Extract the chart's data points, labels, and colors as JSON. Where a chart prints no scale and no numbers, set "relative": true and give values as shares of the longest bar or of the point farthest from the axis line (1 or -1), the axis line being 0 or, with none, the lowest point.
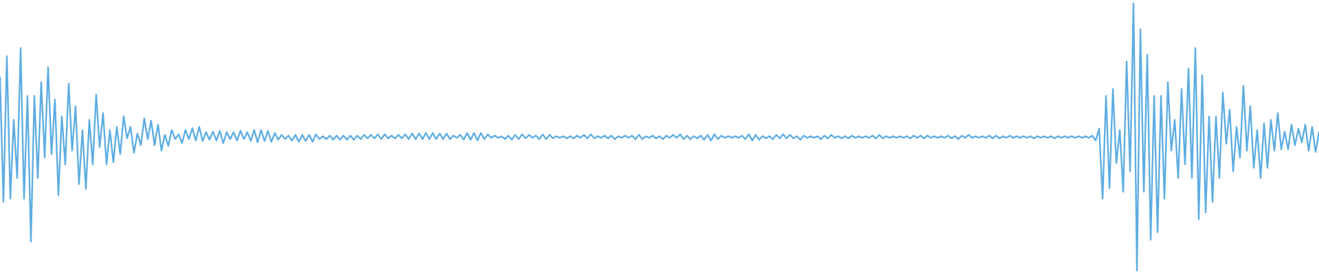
{
  "chart_data": {
    "type": "line",
    "relative": true,
    "color": "#5dade2",
    "categories": [
      null,
      null,
      null,
      null,
      null,
      null,
      null,
      null,
      null,
      null,
      null,
      null,
      null,
      null,
      null,
      null,
      null,
      null,
      null,
      null,
      null,
      null,
      null,
      null,
      null,
      null,
      null,
      null,
      null,
      null,
      null,
      null,
      null,
      null,
      null,
      null,
      null,
      null,
      null,
      null,
      null,
      null,
      null,
      null,
      null,
      null,
      null,
      null,
      null,
      null,
      null,
      null,
      null,
      null,
      null,
      null,
      null,
      null,
      null,
      null,
      null,
      null,
      null,
      null,
      null,
      null,
      null,
      null,
      null,
      null,
      null,
      null,
      null,
      null,
      null,
      null,
      null,
      null,
      null,
      null,
      null,
      null,
      null,
      null,
      null,
      null,
      null,
      null,
      null,
      null,
      null,
      null,
      null,
      null,
      null,
      null,
      null,
      null,
      null,
      null,
      null,
      null,
      null,
      null,
      null,
      null,
      null,
      null,
      null,
      null,
      null,
      null,
      null,
      null,
      null,
      null,
      null,
      null,
      null,
      null,
      null,
      null,
      null,
      null,
      null,
      null,
      null,
      null,
      null,
      null,
      null,
      null,
      null,
      null,
      null,
      null,
      null,
      null,
      null,
      null,
      null,
      null,
      null,
      null,
      null,
      null,
      null,
      null,
      null,
      null,
      null,
      null,
      null,
      null,
      null,
      null,
      null,
      null,
      null,
      null,
      null,
      null,
      null,
      null,
      null,
      null,
      null,
      null,
      null,
      null,
      null,
      null,
      null,
      null,
      null,
      null,
      null,
      null,
      null,
      null,
      null,
      null,
      null,
      null,
      null,
      null,
      null,
      null,
      null,
      null,
      null,
      null,
      null,
      null,
      null,
      null,
      null,
      null,
      null,
      null,
      null,
      null,
      null,
      null,
      null,
      null,
      null,
      null,
      null,
      null,
      null,
      null,
      null,
      null,
      null,
      null,
      null,
      null,
      null,
      null,
      null,
      null,
      null,
      null,
      null,
      null,
      null,
      null,
      null,
      null,
      null,
      null,
      null,
      null,
      null,
      null,
      null,
      null,
      null,
      null,
      null,
      null,
      null,
      null,
      null,
      null,
      null,
      null,
      null,
      null,
      null,
      null,
      null,
      null,
      null,
      null,
      null,
      null,
      null,
      null,
      null,
      null,
      null,
      null,
      null,
      null,
      null,
      null,
      null,
      null,
      null,
      null,
      null,
      null,
      null,
      null,
      null,
      null,
      null,
      null,
      null,
      null,
      null,
      null,
      null,
      null,
      null,
      null,
      null,
      null,
      null,
      null,
      null,
      null,
      null,
      null,
      null,
      null,
      null,
      null,
      null,
      null,
      null,
      null,
      null,
      null,
      null,
      null,
      null,
      null,
      null,
      null,
      null,
      null,
      null,
      null,
      null,
      null,
      null,
      null,
      null,
      null,
      null,
      null,
      null,
      null,
      null,
      null,
      null,
      null,
      null,
      null,
      null,
      null,
      null,
      null,
      null,
      null,
      null,
      null,
      null,
      null,
      null,
      null,
      null,
      null,
      null,
      null,
      null,
      null,
      null,
      null,
      null,
      null,
      null,
      null,
      null,
      null,
      null,
      null,
      null,
      null,
      null,
      null,
      null,
      null,
      null,
      null,
      null,
      null,
      null,
      null,
      null,
      null,
      null,
      null,
      null,
      null,
      null,
      null,
      null,
      null,
      null,
      null,
      null
    ],
    "values": [
      0.722,
      0.258,
      0.801,
      0.27,
      0.564,
      0.347,
      0.832,
      0.27,
      0.653,
      0.11,
      0.653,
      0.347,
      0.704,
      0.423,
      0.76,
      0.436,
      0.64,
      0.283,
      0.577,
      0.398,
      0.699,
      0.449,
      0.615,
      0.324,
      0.526,
      0.306,
      0.564,
      0.398,
      0.658,
      0.462,
      0.589,
      0.398,
      0.526,
      0.406,
      0.538,
      0.436,
      0.577,
      0.495,
      0.538,
      0.441,
      0.513,
      0.469,
      0.569,
      0.492,
      0.561,
      0.469,
      0.546,
      0.449,
      0.508,
      0.467,
      0.526,
      0.492,
      0.51,
      0.477,
      0.526,
      0.492,
      0.533,
      0.487,
      0.538,
      0.485,
      0.518,
      0.49,
      0.52,
      0.487,
      0.523,
      0.477,
      0.518,
      0.492,
      0.518,
      0.487,
      0.523,
      0.492,
      0.518,
      0.485,
      0.526,
      0.48,
      0.526,
      0.485,
      0.523,
      0.482,
      0.515,
      0.49,
      0.508,
      0.492,
      0.505,
      0.487,
      0.508,
      0.482,
      0.508,
      0.485,
      0.508,
      0.482,
      0.51,
      0.492,
      0.503,
      0.492,
      0.505,
      0.49,
      0.505,
      0.49,
      0.505,
      0.49,
      0.505,
      0.49,
      0.505,
      0.492,
      0.508,
      0.495,
      0.508,
      0.495,
      0.51,
      0.492,
      0.51,
      0.495,
      0.505,
      0.495,
      0.508,
      0.495,
      0.51,
      0.492,
      0.513,
      0.492,
      0.513,
      0.492,
      0.515,
      0.492,
      0.515,
      0.492,
      0.513,
      0.492,
      0.513,
      0.492,
      0.505,
      0.497,
      0.508,
      0.49,
      0.515,
      0.49,
      0.515,
      0.487,
      0.515,
      0.492,
      0.51,
      0.497,
      0.505,
      0.497,
      0.503,
      0.492,
      0.505,
      0.49,
      0.508,
      0.492,
      0.51,
      0.495,
      0.508,
      0.497,
      0.505,
      0.492,
      0.51,
      0.492,
      0.508,
      0.495,
      0.503,
      0.497,
      0.503,
      0.495,
      0.503,
      0.495,
      0.505,
      0.497,
      0.508,
      0.495,
      0.51,
      0.495,
      0.503,
      0.497,
      0.505,
      0.495,
      0.505,
      0.492,
      0.503,
      0.497,
      0.505,
      0.497,
      0.505,
      0.492,
      0.508,
      0.492,
      0.503,
      0.497,
      0.505,
      0.495,
      0.503,
      0.492,
      0.505,
      0.497,
      0.508,
      0.497,
      0.51,
      0.492,
      0.505,
      0.492,
      0.503,
      0.495,
      0.505,
      0.49,
      0.508,
      0.487,
      0.51,
      0.492,
      0.505,
      0.497,
      0.503,
      0.497,
      0.503,
      0.497,
      0.505,
      0.492,
      0.51,
      0.487,
      0.508,
      0.49,
      0.503,
      0.495,
      0.503,
      0.492,
      0.508,
      0.495,
      0.51,
      0.495,
      0.508,
      0.495,
      0.503,
      0.49,
      0.505,
      0.497,
      0.503,
      0.497,
      0.503,
      0.492,
      0.505,
      0.495,
      0.508,
      0.497,
      0.503,
      0.495,
      0.503,
      0.495,
      0.505,
      0.497,
      0.503,
      0.497,
      0.503,
      0.497,
      0.505,
      0.495,
      0.508,
      0.495,
      0.503,
      0.497,
      0.503,
      0.497,
      0.503,
      0.497,
      0.503,
      0.495,
      0.505,
      0.497,
      0.505,
      0.495,
      0.505,
      0.497,
      0.503,
      0.497,
      0.503,
      0.497,
      0.505,
      0.495,
      0.503,
      0.492,
      0.505,
      0.497,
      0.508,
      0.497,
      0.503,
      0.497,
      0.503,
      0.497,
      0.505,
      0.495,
      0.505,
      0.495,
      0.503,
      0.497,
      0.505,
      0.497,
      0.503,
      0.497,
      0.503,
      0.497,
      0.503,
      0.495,
      0.503,
      0.497,
      0.503,
      0.497,
      0.503,
      0.495,
      0.503,
      0.497,
      0.503,
      0.497,
      0.503,
      0.497,
      0.503,
      0.497,
      0.503,
      0.497,
      0.505,
      0.487,
      0.531,
      0.27,
      0.653,
      0.309,
      0.679,
      0.403,
      0.526,
      0.296,
      0.781,
      0.372,
      1.0,
      0.0,
      0.901,
      0.296,
      0.806,
      0.117,
      0.653,
      0.145,
      0.653,
      0.27,
      0.704,
      0.449,
      0.564,
      0.347,
      0.679,
      0.398,
      0.755,
      0.347,
      0.832,
      0.194,
      0.73,
      0.219,
      0.577,
      0.258,
      0.577,
      0.347,
      0.666,
      0.474,
      0.602,
      0.372,
      0.538,
      0.423,
      0.691,
      0.449,
      0.615,
      0.385,
      0.526,
      0.347,
      0.551,
      0.385,
      0.564,
      0.449,
      0.589,
      0.454,
      0.52,
      0.454,
      0.546,
      0.469,
      0.531,
      0.48,
      0.546,
      0.449,
      0.538,
      0.444,
      0.518
    ]
  }
}
